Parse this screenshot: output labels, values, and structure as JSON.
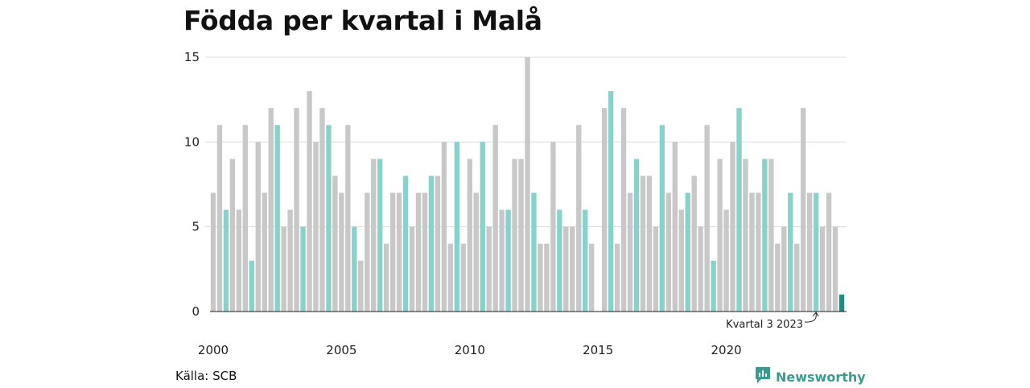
{
  "title": "Födda per kvartal i Malå",
  "source": "Källa: SCB",
  "brand": {
    "name": "Newsworthy",
    "icon": "newsworthy-logo-icon",
    "color": "#3a9c8e"
  },
  "colors": {
    "default": "#c8c8c8",
    "q3": "#87d3cc",
    "latest": "#1e8c7e",
    "grid": "#dcdcdc",
    "axis": "#222222"
  },
  "chart_data": {
    "type": "bar",
    "title": "Födda per kvartal i Malå",
    "xlabel": "",
    "ylabel": "",
    "ylim": [
      0,
      15
    ],
    "y_ticks": [
      0,
      5,
      10,
      15
    ],
    "x_tick_labels": [
      "2000",
      "2005",
      "2010",
      "2015",
      "2020"
    ],
    "grid": true,
    "start": "2000 Q1",
    "highlight": "Kvartal 3 markeras i turkos",
    "annotation": "Kvartal 3 2023",
    "values": [
      7,
      11,
      6,
      9,
      6,
      11,
      3,
      10,
      7,
      12,
      11,
      5,
      6,
      12,
      5,
      13,
      10,
      12,
      11,
      8,
      7,
      11,
      5,
      3,
      7,
      9,
      9,
      4,
      7,
      7,
      8,
      5,
      7,
      7,
      8,
      8,
      10,
      4,
      10,
      4,
      9,
      7,
      10,
      5,
      11,
      6,
      6,
      9,
      9,
      15,
      7,
      4,
      4,
      10,
      6,
      5,
      5,
      11,
      6,
      4,
      0,
      12,
      13,
      4,
      12,
      7,
      9,
      8,
      8,
      5,
      11,
      7,
      10,
      6,
      7,
      8,
      5,
      11,
      3,
      9,
      6,
      10,
      12,
      9,
      7,
      7,
      9,
      9,
      4,
      5,
      7,
      4,
      12,
      7,
      7,
      5,
      7,
      5,
      1
    ]
  }
}
